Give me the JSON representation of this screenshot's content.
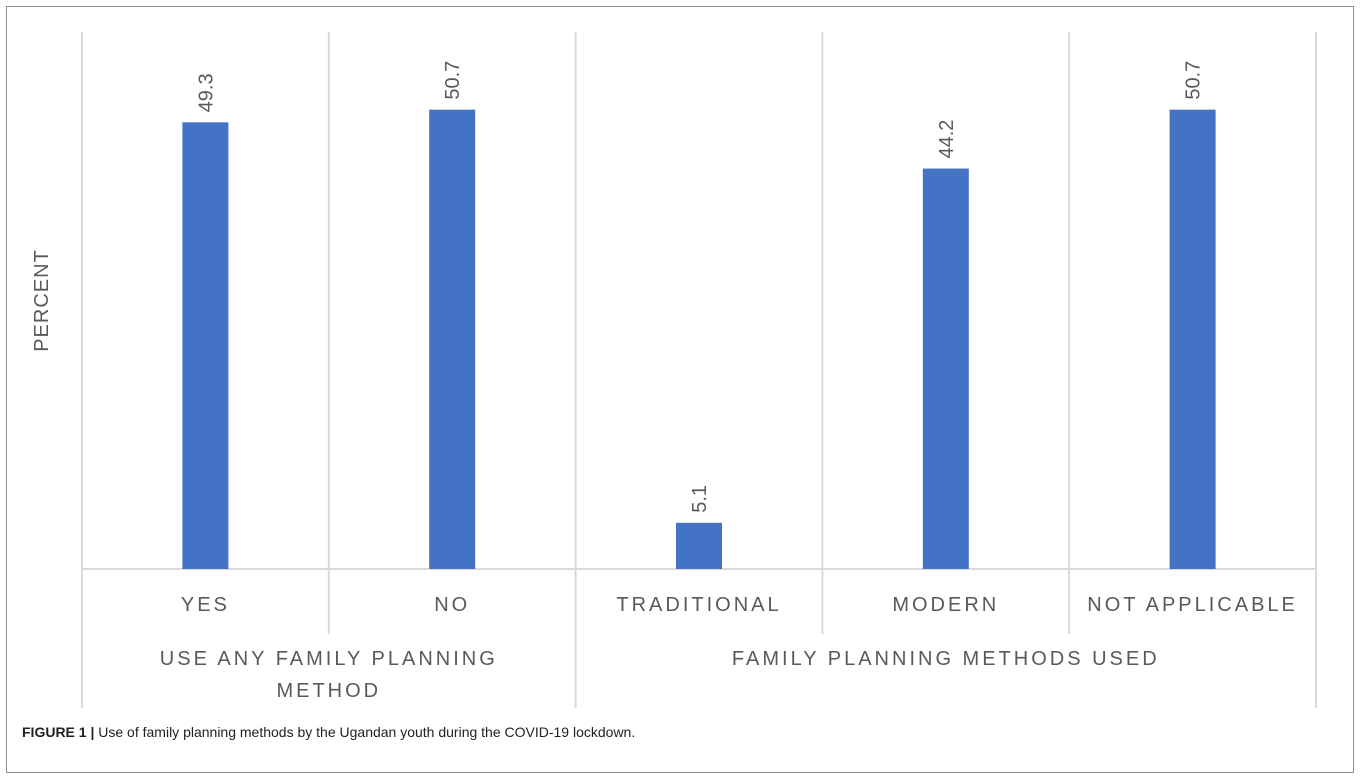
{
  "chart_data": {
    "type": "bar",
    "ylabel": "PERCENT",
    "ylim": [
      0,
      55
    ],
    "grid": false,
    "categories": [
      "YES",
      "NO",
      "TRADITIONAL",
      "MODERN",
      "NOT APPLICABLE"
    ],
    "groups": [
      {
        "label_lines": [
          "USE ANY FAMILY PLANNING",
          "METHOD"
        ],
        "categories": [
          "YES",
          "NO"
        ]
      },
      {
        "label_lines": [
          "FAMILY PLANNING METHODS USED"
        ],
        "categories": [
          "TRADITIONAL",
          "MODERN",
          "NOT APPLICABLE"
        ]
      }
    ],
    "values": [
      49.3,
      50.7,
      5.1,
      44.2,
      50.7
    ],
    "data_labels": [
      "49.3",
      "50.7",
      "5.1",
      "44.2",
      "50.7"
    ],
    "bar_color": "#4472c4"
  },
  "caption": {
    "label": "FIGURE 1 |",
    "text": "Use of family planning methods by the Ugandan youth during the COVID-19 lockdown."
  }
}
